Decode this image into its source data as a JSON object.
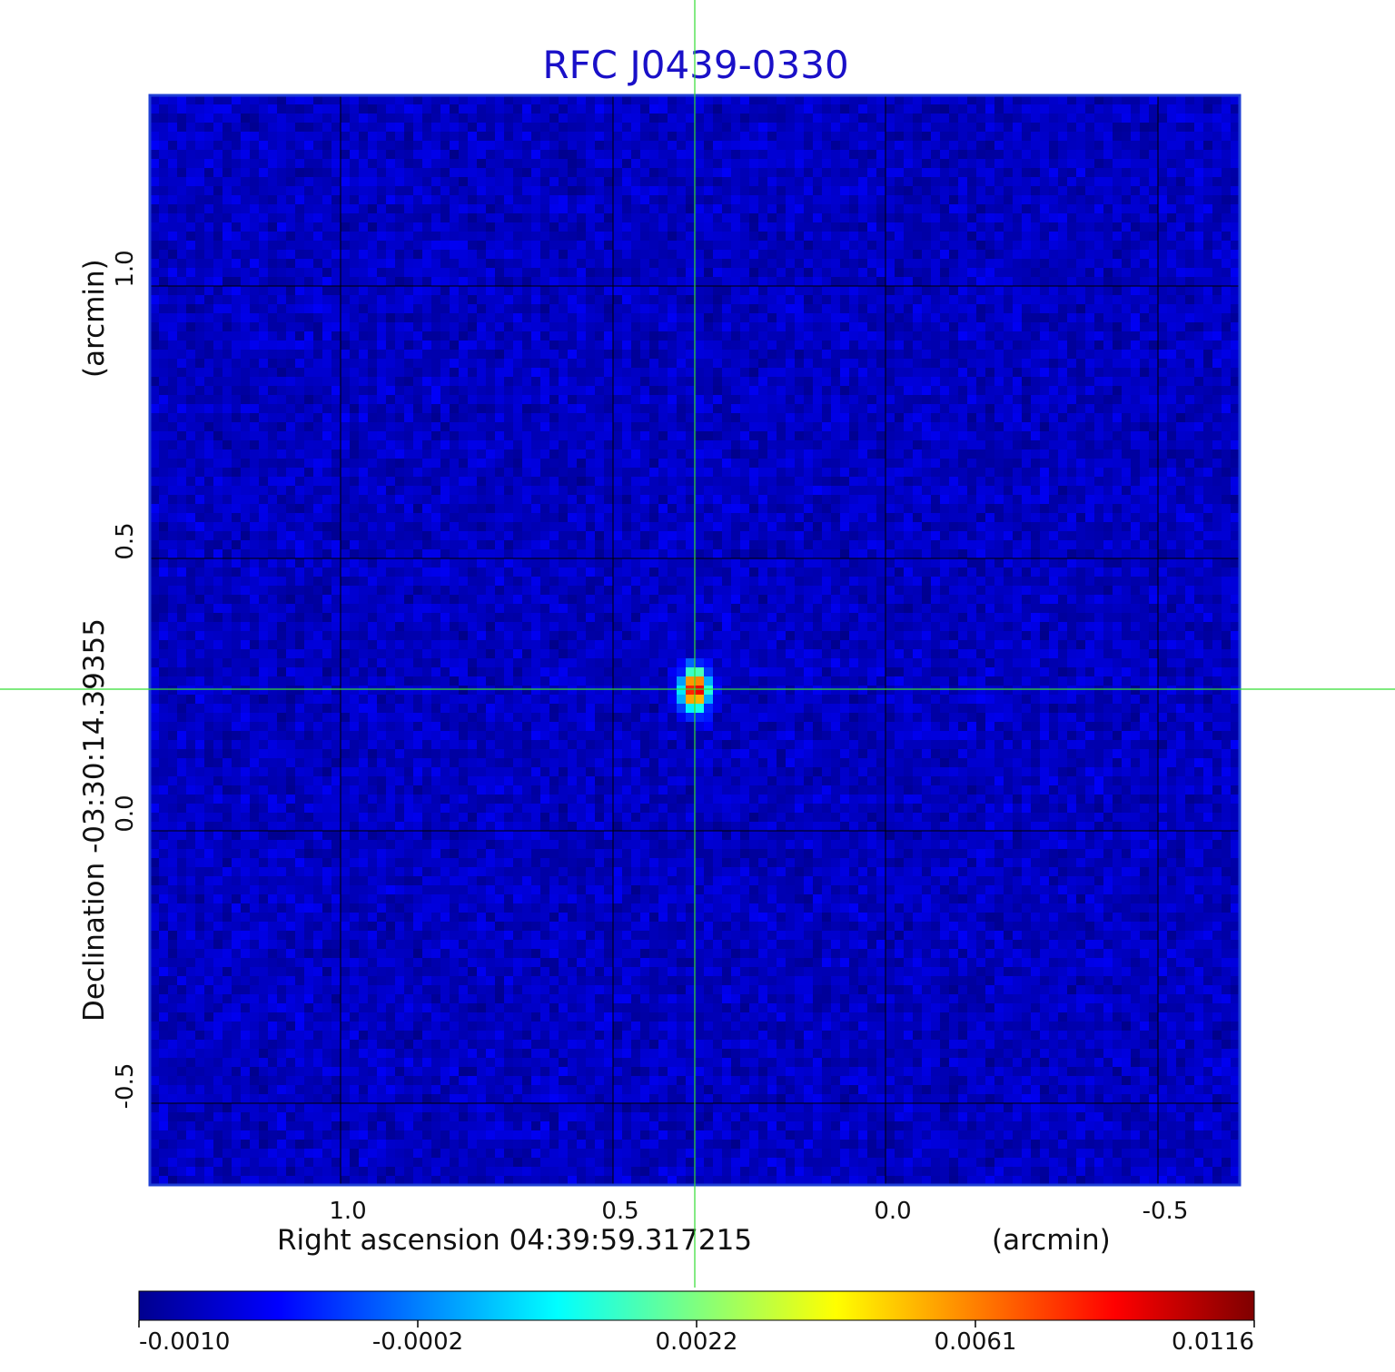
{
  "chart_data": {
    "type": "heatmap",
    "title": "RFC J0439-0330",
    "xlabel": "Right ascension  04:39:59.317215",
    "xunit": "(arcmin)",
    "ylabel": "Declination  -03:30:14.39355",
    "yunit": "(arcmin)",
    "x_range": [
      1.35,
      -0.65
    ],
    "y_range": [
      -0.65,
      1.35
    ],
    "x_ticks": [
      {
        "value": 1.0,
        "label": "1.0"
      },
      {
        "value": 0.5,
        "label": "0.5"
      },
      {
        "value": 0.0,
        "label": "0.0"
      },
      {
        "value": -0.5,
        "label": "-0.5"
      }
    ],
    "y_ticks": [
      {
        "value": 1.0,
        "label": "1.0"
      },
      {
        "value": 0.5,
        "label": "0.5"
      },
      {
        "value": 0.0,
        "label": "0.0"
      },
      {
        "value": -0.5,
        "label": "-0.5"
      }
    ],
    "grid": true,
    "crosshair": {
      "x": 0.35,
      "y": 0.26
    },
    "source_peak": {
      "x": 0.35,
      "y": 0.26,
      "value": 0.0116
    },
    "background_level": -0.0002,
    "colorbar": {
      "colormap": "jet",
      "tick_labels": [
        "-0.0010",
        "-0.0002",
        "0.0022",
        "0.0061",
        "0.0116"
      ],
      "min": -0.001,
      "max": 0.0116
    },
    "colors": {
      "title": "#1a10c8",
      "frame": "#1f3fd6",
      "crosshair": "#33dd33",
      "grid": "#000000"
    }
  }
}
